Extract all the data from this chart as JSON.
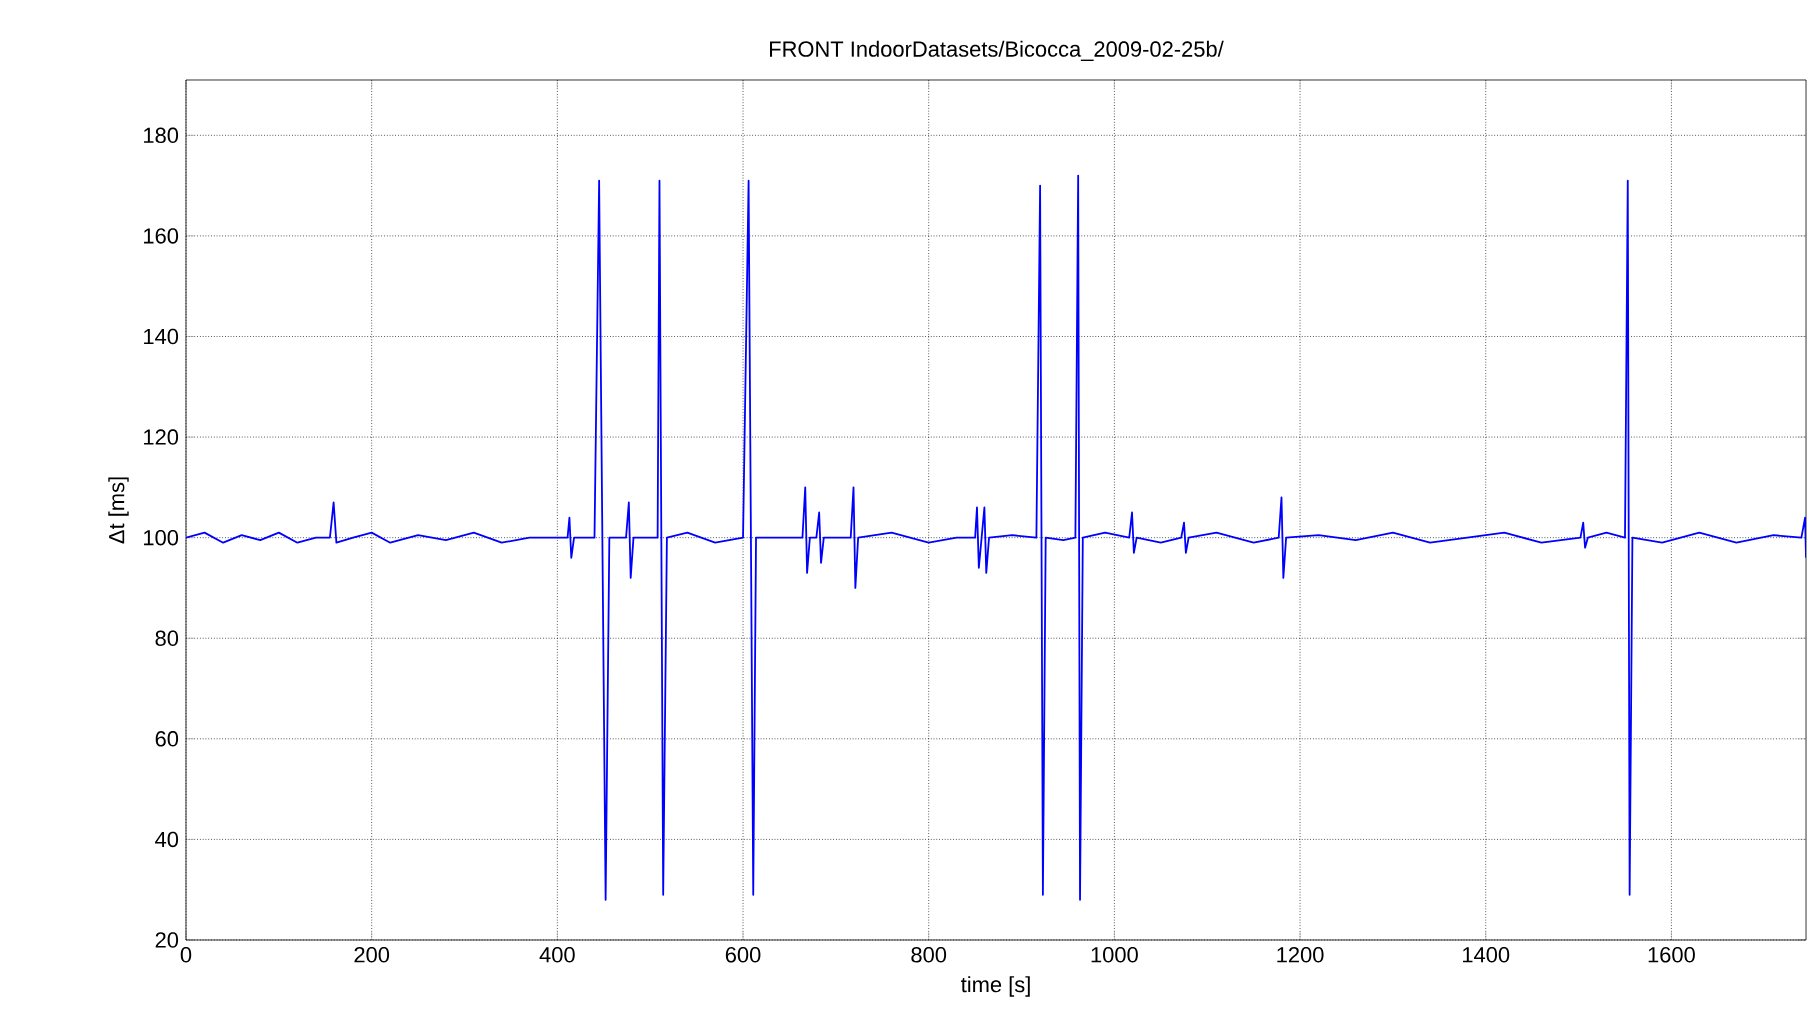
{
  "chart_data": {
    "type": "line",
    "title": "FRONT IndoorDatasets/Bicocca_2009-02-25b/",
    "xlabel": "time [s]",
    "ylabel": "Δt [ms]",
    "xlim": [
      0,
      1745
    ],
    "ylim": [
      20,
      191
    ],
    "xticks": [
      0,
      200,
      400,
      600,
      800,
      1000,
      1200,
      1400,
      1600
    ],
    "yticks": [
      20,
      40,
      60,
      80,
      100,
      120,
      140,
      160,
      180
    ],
    "grid": true,
    "marker": "none",
    "line_style": "solid",
    "series": [
      {
        "color": "#0000ff",
        "x": [
          0,
          20,
          40,
          60,
          80,
          100,
          120,
          140,
          155,
          159,
          162,
          180,
          200,
          220,
          250,
          280,
          310,
          340,
          370,
          400,
          411,
          413,
          415,
          418,
          440,
          445,
          452,
          456,
          474,
          477,
          479,
          482,
          495,
          508,
          510,
          514,
          518,
          540,
          570,
          600,
          606,
          611,
          614,
          640,
          664,
          667,
          669,
          672,
          679,
          682,
          684,
          687,
          716,
          719,
          721,
          724,
          760,
          800,
          830,
          850,
          852,
          854,
          857,
          860,
          862,
          865,
          890,
          916,
          920,
          923,
          926,
          945,
          958,
          961,
          963,
          966,
          990,
          1016,
          1019,
          1021,
          1024,
          1050,
          1072,
          1075,
          1077,
          1080,
          1110,
          1150,
          1177,
          1180,
          1182,
          1185,
          1220,
          1260,
          1300,
          1340,
          1380,
          1420,
          1460,
          1502,
          1505,
          1507,
          1510,
          1530,
          1550,
          1553,
          1555,
          1558,
          1590,
          1630,
          1670,
          1710,
          1740,
          1744,
          1745
        ],
        "values": [
          100,
          101,
          99,
          100.5,
          99.5,
          101,
          99,
          100,
          100,
          107,
          99,
          100,
          101,
          99,
          100.5,
          99.5,
          101,
          99,
          100,
          100,
          100,
          104,
          96,
          100,
          100,
          171,
          28,
          100,
          100,
          107,
          92,
          100,
          100,
          100,
          171,
          29,
          100,
          101,
          99,
          100,
          171,
          29,
          100,
          100,
          100,
          110,
          93,
          100,
          100,
          105,
          95,
          100,
          100,
          110,
          90,
          100,
          101,
          99,
          100,
          100,
          106,
          94,
          100,
          106,
          93,
          100,
          100.5,
          100,
          170,
          29,
          100,
          99.5,
          100,
          172,
          28,
          100,
          101,
          100,
          105,
          97,
          100,
          99,
          100,
          103,
          97,
          100,
          101,
          99,
          100,
          108,
          92,
          100,
          100.5,
          99.5,
          101,
          99,
          100,
          101,
          99,
          100,
          103,
          98,
          100,
          101,
          100,
          171,
          29,
          100,
          99,
          101,
          99,
          100.5,
          100,
          104,
          96
        ]
      }
    ]
  }
}
